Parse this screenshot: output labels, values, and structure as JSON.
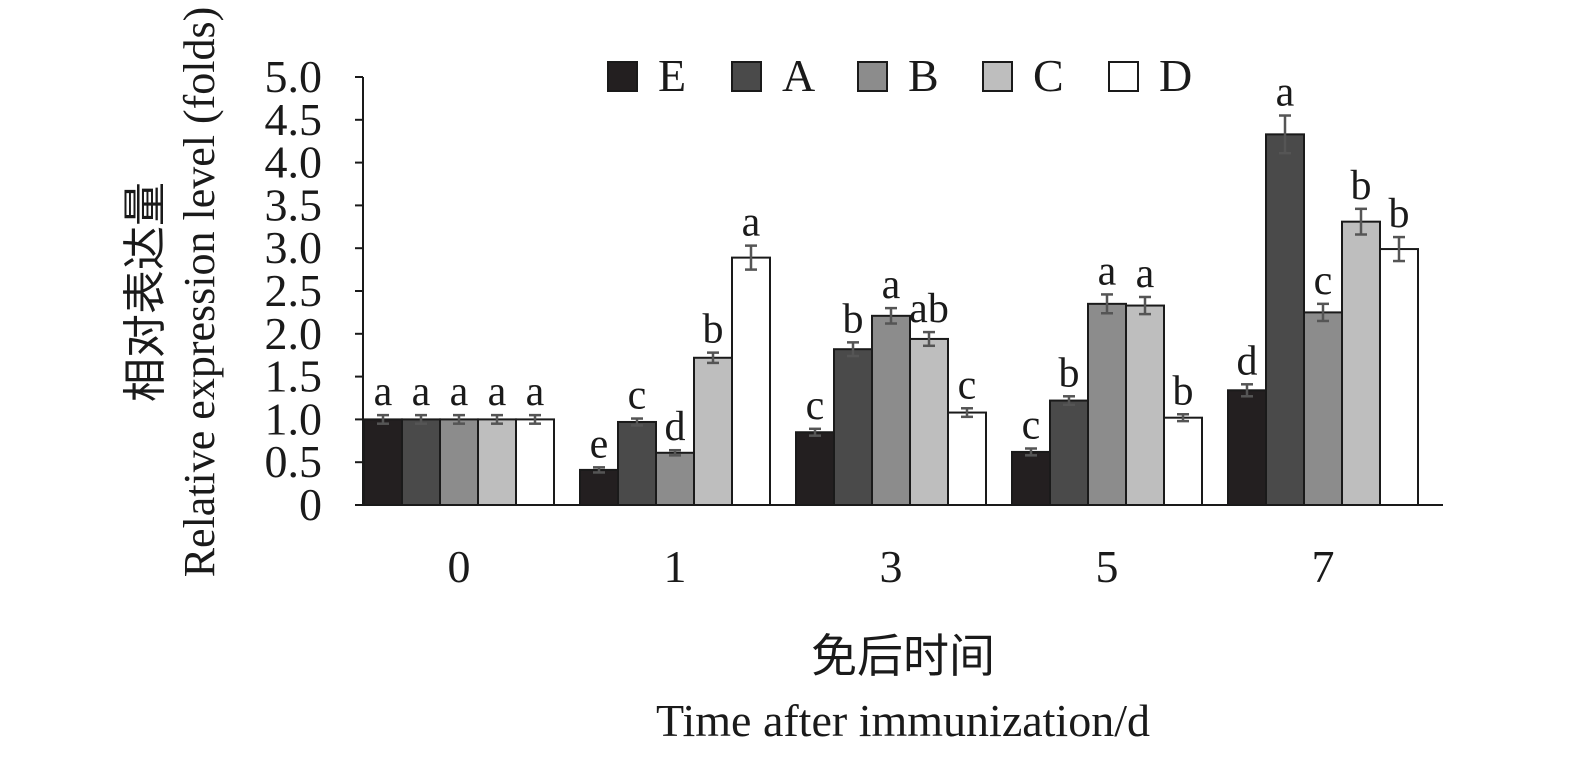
{
  "chart_data": {
    "type": "bar",
    "xlabel_cn": "免后时间",
    "xlabel_en": "Time after immunization/d",
    "ylabel_cn": "相对表达量",
    "ylabel_en": "Relative expression level (folds)",
    "ylim": [
      0,
      5.0
    ],
    "yticks": [
      "0",
      "0.5",
      "1.0",
      "1.5",
      "2.0",
      "2.5",
      "3.0",
      "3.5",
      "4.0",
      "4.5",
      "5.0"
    ],
    "categories": [
      "0",
      "1",
      "3",
      "5",
      "7"
    ],
    "legend_position": "top",
    "grid": false,
    "series": [
      {
        "name": "E",
        "color": "#231f20",
        "values": [
          1.0,
          0.41,
          0.85,
          0.62,
          1.34
        ],
        "errors": [
          0.05,
          0.03,
          0.04,
          0.04,
          0.07
        ],
        "labels": [
          "a",
          "e",
          "c",
          "c",
          "d"
        ]
      },
      {
        "name": "A",
        "color": "#4a4a4a",
        "values": [
          1.0,
          0.97,
          1.82,
          1.22,
          4.33
        ],
        "errors": [
          0.05,
          0.04,
          0.08,
          0.05,
          0.22
        ],
        "labels": [
          "a",
          "c",
          "b",
          "b",
          "a"
        ]
      },
      {
        "name": "B",
        "color": "#8c8c8c",
        "values": [
          1.0,
          0.61,
          2.21,
          2.35,
          2.25
        ],
        "errors": [
          0.05,
          0.03,
          0.09,
          0.11,
          0.1
        ],
        "labels": [
          "a",
          "d",
          "a",
          "a",
          "c"
        ]
      },
      {
        "name": "C",
        "color": "#bebebe",
        "values": [
          1.0,
          1.72,
          1.94,
          2.33,
          3.31
        ],
        "errors": [
          0.05,
          0.06,
          0.08,
          0.1,
          0.15
        ],
        "labels": [
          "a",
          "b",
          "ab",
          "a",
          "b"
        ]
      },
      {
        "name": "D",
        "color": "#ffffff",
        "values": [
          1.0,
          2.89,
          1.08,
          1.02,
          2.99
        ],
        "errors": [
          0.05,
          0.14,
          0.05,
          0.04,
          0.14
        ],
        "labels": [
          "a",
          "a",
          "c",
          "b",
          "b"
        ]
      }
    ]
  }
}
